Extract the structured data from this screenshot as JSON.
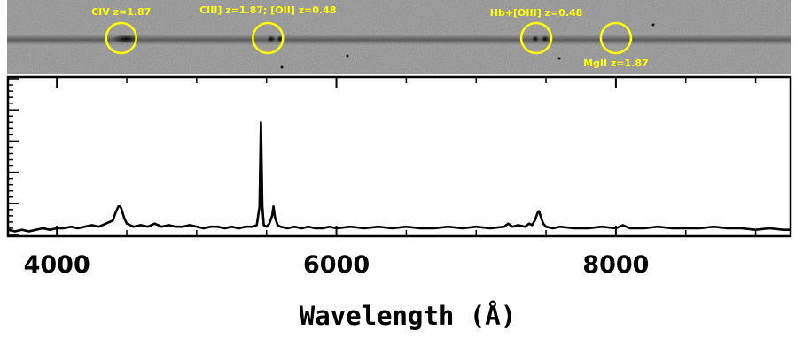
{
  "chart_data": {
    "type": "line",
    "title": "",
    "xlabel": "Wavelength (Å)",
    "ylabel": "",
    "xlim": [
      3650,
      9250
    ],
    "ylim": [
      0,
      1.0
    ],
    "x_ticks": [
      4000,
      6000,
      8000
    ],
    "x_tick_labels": [
      "4000",
      "6000",
      "8000"
    ],
    "grid": false,
    "series": [
      {
        "x": [
          3650,
          3700,
          3750,
          3800,
          3850,
          3900,
          3950,
          4000,
          4050,
          4100,
          4150,
          4200,
          4250,
          4300,
          4350,
          4400,
          4420,
          4440,
          4450,
          4460,
          4480,
          4500,
          4550,
          4600,
          4650,
          4700,
          4750,
          4800,
          4850,
          4900,
          4950,
          5000,
          5050,
          5100,
          5150,
          5200,
          5250,
          5300,
          5350,
          5400,
          5430,
          5450,
          5460,
          5470,
          5480,
          5500,
          5520,
          5540,
          5550,
          5560,
          5580,
          5600,
          5650,
          5700,
          5750,
          5800,
          5850,
          5900,
          5950,
          6000,
          6100,
          6200,
          6300,
          6400,
          6500,
          6600,
          6700,
          6800,
          6900,
          7000,
          7100,
          7200,
          7230,
          7260,
          7300,
          7350,
          7380,
          7400,
          7420,
          7440,
          7450,
          7460,
          7480,
          7500,
          7550,
          7600,
          7700,
          7800,
          7900,
          8000,
          8050,
          8100,
          8200,
          8300,
          8400,
          8500,
          8600,
          8700,
          8800,
          8900,
          9000,
          9100,
          9200,
          9250
        ],
        "y": [
          0.03,
          0.02,
          0.03,
          0.02,
          0.03,
          0.04,
          0.03,
          0.04,
          0.04,
          0.05,
          0.04,
          0.05,
          0.06,
          0.05,
          0.07,
          0.09,
          0.14,
          0.18,
          0.18,
          0.17,
          0.11,
          0.07,
          0.05,
          0.06,
          0.05,
          0.07,
          0.05,
          0.06,
          0.05,
          0.05,
          0.06,
          0.05,
          0.04,
          0.05,
          0.05,
          0.04,
          0.05,
          0.04,
          0.05,
          0.05,
          0.06,
          0.18,
          0.72,
          0.18,
          0.06,
          0.05,
          0.07,
          0.12,
          0.18,
          0.11,
          0.06,
          0.05,
          0.04,
          0.05,
          0.04,
          0.05,
          0.04,
          0.04,
          0.05,
          0.04,
          0.05,
          0.04,
          0.05,
          0.04,
          0.05,
          0.04,
          0.04,
          0.05,
          0.04,
          0.05,
          0.04,
          0.05,
          0.07,
          0.05,
          0.06,
          0.05,
          0.07,
          0.06,
          0.09,
          0.14,
          0.15,
          0.12,
          0.07,
          0.05,
          0.04,
          0.05,
          0.04,
          0.04,
          0.05,
          0.04,
          0.06,
          0.04,
          0.04,
          0.05,
          0.04,
          0.04,
          0.04,
          0.05,
          0.04,
          0.04,
          0.03,
          0.04,
          0.03,
          0.03
        ],
        "color": "#000000"
      }
    ],
    "spectrum_image": {
      "background": "#8f8f8f",
      "trace_color": "#3c3c3c",
      "circle_color": "#ffff00",
      "annotations": [
        {
          "text": "CIV z=1.87",
          "wavelength": 4460
        },
        {
          "text": "CIII] z=1.87; [OII] z=0.48",
          "wavelength": 5510
        },
        {
          "text": "Hb+[OIII] z=0.48",
          "wavelength": 7430
        },
        {
          "text": "MgII z=1.87",
          "wavelength": 8000
        }
      ]
    }
  }
}
